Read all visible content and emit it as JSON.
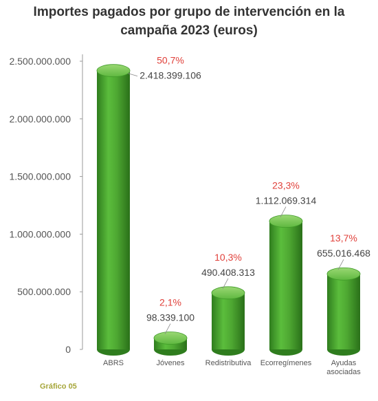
{
  "chart_data": {
    "type": "bar",
    "title_lines": [
      "Importes pagados por grupo de intervención en la",
      "campaña 2023 (euros)"
    ],
    "categories": [
      [
        "ABRS"
      ],
      [
        "Jóvenes"
      ],
      [
        "Redistributiva"
      ],
      [
        "Ecorregímenes"
      ],
      [
        "Ayudas",
        "asociadas"
      ]
    ],
    "values": [
      2418399106,
      98339100,
      490408313,
      1112069314,
      655016468
    ],
    "value_labels": [
      "2.418.399.106",
      "98.339.100",
      "490.408.313",
      "1.112.069.314",
      "655.016.468"
    ],
    "percent_labels": [
      "50,7%",
      "2,1%",
      "10,3%",
      "23,3%",
      "13,7%"
    ],
    "y_ticks": [
      0,
      500000000,
      1000000000,
      1500000000,
      2000000000,
      2500000000
    ],
    "y_tick_labels": [
      "0",
      "500.000.000",
      "1.000.000.000",
      "1.500.000.000",
      "2.000.000.000",
      "2.500.000.000"
    ],
    "ylim": [
      0,
      2500000000
    ],
    "grid": false,
    "colors": {
      "bar": "#4ea832",
      "bar_dark": "#2f7d1e",
      "bar_light": "#8fd06a",
      "percent": "#e0403a",
      "value": "#444444",
      "axis": "#999999"
    }
  },
  "figure_label": "Gráfico 05"
}
